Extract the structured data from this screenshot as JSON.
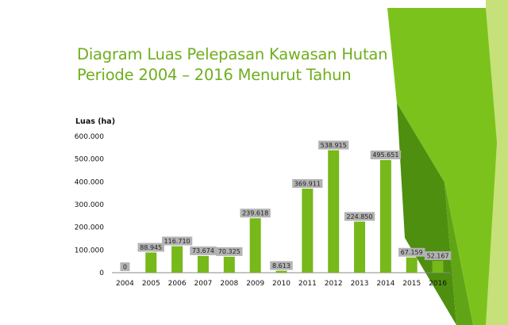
{
  "slide": {
    "title_line1": "Diagram Luas Pelepasan Kawasan Hutan",
    "title_line2": "Periode 2004 – 2016 Menurut Tahun",
    "colors": {
      "title": "#6fae1e",
      "bar": "#77b81a",
      "value_box": "#b3b3b3",
      "decoration_green": "#7cc21d",
      "decoration_dark": "#4e8f0f",
      "decoration_light": "#c6e17a"
    }
  },
  "chart_data": {
    "type": "bar",
    "title": "",
    "ylabel": "Luas (ha)",
    "xlabel": "",
    "categories": [
      "2004",
      "2005",
      "2006",
      "2007",
      "2008",
      "2009",
      "2010",
      "2011",
      "2012",
      "2013",
      "2014",
      "2015",
      "2016"
    ],
    "values": [
      0,
      88945,
      116710,
      73674,
      70325,
      239618,
      8613,
      369911,
      538915,
      224850,
      495651,
      67159,
      52167
    ],
    "value_labels": [
      "0",
      "88.945",
      "116.710",
      "73.674",
      "70.325",
      "239.618",
      "8.613",
      "369.911",
      "538.915",
      "224.850",
      "495.651",
      "67.159",
      "52.167"
    ],
    "ylim": [
      0,
      600000
    ],
    "yticks": [
      0,
      100000,
      200000,
      300000,
      400000,
      500000,
      600000
    ],
    "ytick_labels": [
      "0",
      "100.000",
      "200.000",
      "300.000",
      "400.000",
      "500.000",
      "600.000"
    ],
    "grid": false,
    "legend": "none"
  }
}
